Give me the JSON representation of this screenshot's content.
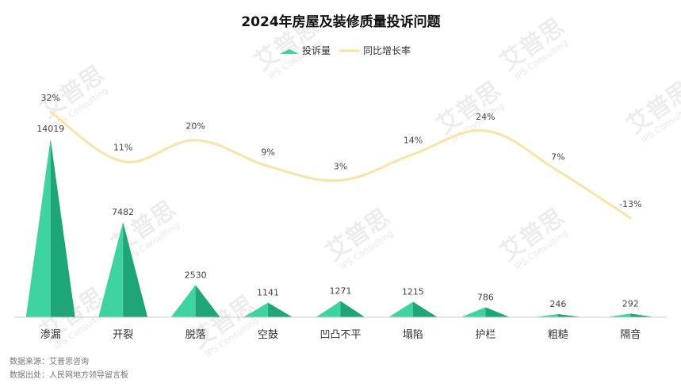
{
  "chart_data": {
    "type": "bar",
    "title": "2024年房屋及装修质量投诉问题",
    "categories": [
      "渗漏",
      "开裂",
      "脱落",
      "空鼓",
      "凹凸不平",
      "塌陷",
      "护栏",
      "粗糙",
      "隔音"
    ],
    "series": [
      {
        "name": "投诉量",
        "type": "bar",
        "values": [
          14019,
          7482,
          2530,
          1141,
          1271,
          1215,
          786,
          246,
          292
        ],
        "labels": [
          "14019",
          "7482",
          "2530",
          "1141",
          "1271",
          "1215",
          "786",
          "246",
          "292"
        ]
      },
      {
        "name": "同比增长率",
        "type": "line",
        "values": [
          32,
          11,
          20,
          9,
          3,
          14,
          24,
          7,
          -13
        ],
        "labels": [
          "32%",
          "11%",
          "20%",
          "9%",
          "3%",
          "14%",
          "24%",
          "7%",
          "-13%"
        ]
      }
    ],
    "ylim_left": [
      0,
      15000
    ],
    "ylim_right": [
      -40,
      40
    ],
    "legend_position": "top-center",
    "grid": false,
    "colors": {
      "bar_light": "#3ed3a0",
      "bar_dark": "#1fa678",
      "line": "#fbe3a8",
      "axis": "#cccccc"
    }
  },
  "source": {
    "line1": "数据来源：艾普思咨询",
    "line2": "数据出处：人民网地方领导留言板"
  },
  "watermark": {
    "brand": "艾普思",
    "sub": "IPS Consulting",
    "logo": "iPS"
  }
}
